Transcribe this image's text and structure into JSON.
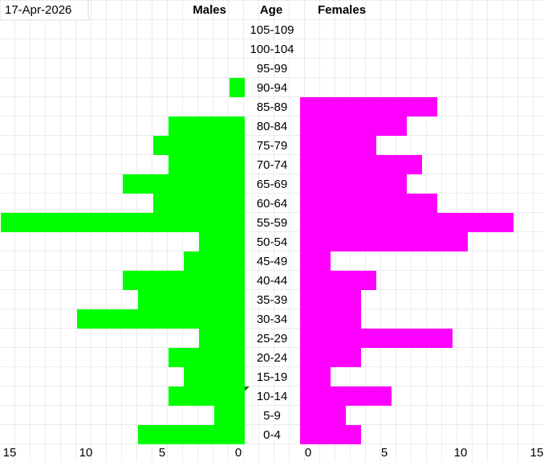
{
  "chart_data": {
    "type": "pyramid",
    "date": "17-Apr-2026",
    "category_label": "Age",
    "categories": [
      "105-109",
      "100-104",
      "95-99",
      "90-94",
      "85-89",
      "80-84",
      "75-79",
      "70-74",
      "65-69",
      "60-64",
      "55-59",
      "50-54",
      "45-49",
      "40-44",
      "35-39",
      "30-34",
      "25-29",
      "20-24",
      "15-19",
      "10-14",
      "5-9",
      "0-4"
    ],
    "series": [
      {
        "name": "Males",
        "color": "#00ff00",
        "values": [
          0,
          0,
          0,
          1,
          0,
          5,
          6,
          5,
          8,
          6,
          16,
          3,
          4,
          8,
          7,
          11,
          3,
          5,
          4,
          5,
          2,
          7
        ]
      },
      {
        "name": "Females",
        "color": "#ff00ff",
        "values": [
          0,
          0,
          0,
          0,
          9,
          7,
          5,
          8,
          7,
          9,
          14,
          11,
          2,
          5,
          4,
          4,
          10,
          4,
          2,
          6,
          3,
          4
        ]
      }
    ],
    "xlim": [
      0,
      16
    ],
    "xticks": [
      0,
      5,
      10,
      15
    ],
    "grid": true
  }
}
